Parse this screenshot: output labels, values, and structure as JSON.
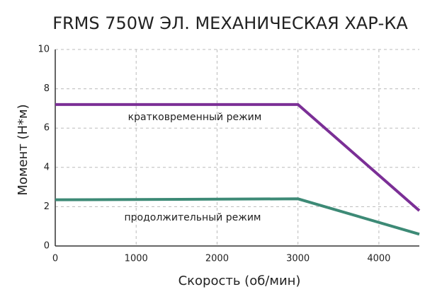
{
  "chart_data": {
    "type": "line",
    "title": "FRMS 750W ЭЛ. МЕХАНИЧЕСКАЯ ХАР-КА",
    "x_label": "Скорость (об/мин)",
    "y_label": "Момент (Н*м)",
    "series": [
      {
        "name": "кратковременный режим",
        "color": "#7b2f96",
        "x": [
          0,
          3000,
          4500
        ],
        "values": [
          7.2,
          7.2,
          1.8
        ]
      },
      {
        "name": "продолжительный режим",
        "color": "#3d8a76",
        "x": [
          0,
          3000,
          4500
        ],
        "values": [
          2.35,
          2.4,
          0.6
        ]
      }
    ],
    "xlim": [
      0,
      4500
    ],
    "ylim": [
      0,
      10
    ],
    "xticks": [
      0,
      1000,
      2000,
      3000,
      4000
    ],
    "yticks": [
      0,
      2,
      4,
      6,
      8,
      10
    ],
    "grid": true
  }
}
